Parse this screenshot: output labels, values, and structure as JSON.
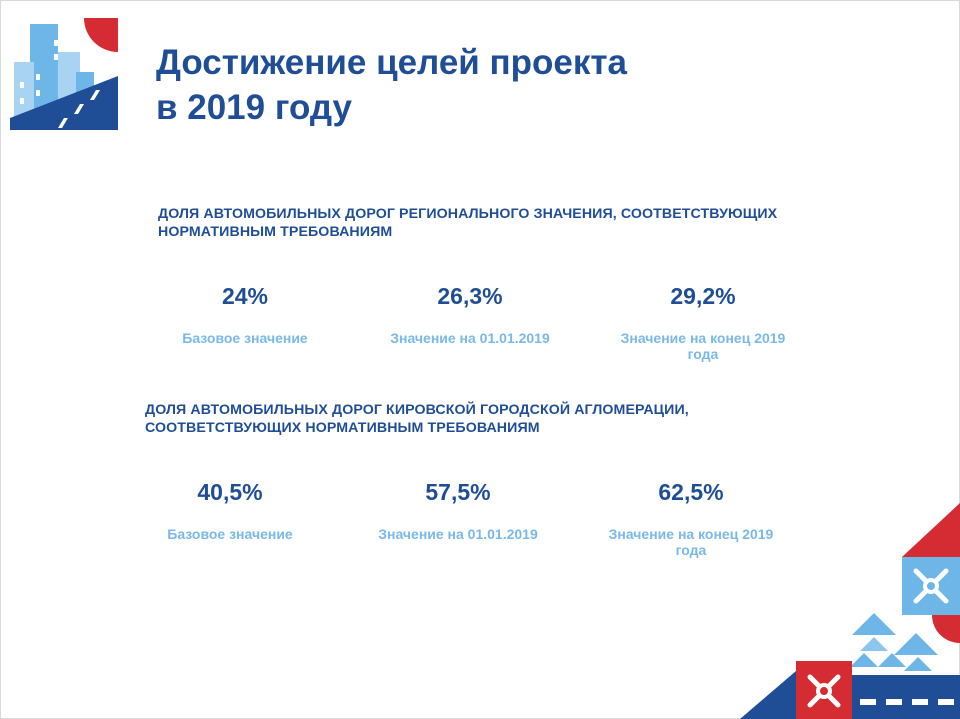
{
  "title": {
    "line1": "Достижение целей проекта",
    "line2": "в 2019 году"
  },
  "sections": [
    {
      "heading_line1": "ДОЛЯ АВТОМОБИЛЬНЫХ ДОРОГ РЕГИОНАЛЬНОГО ЗНАЧЕНИЯ, СООТВЕТСТВУЮЩИХ",
      "heading_line2": "НОРМАТИВНЫМ ТРЕБОВАНИЯМ",
      "metrics": [
        {
          "value": "24%",
          "label": "Базовое значение"
        },
        {
          "value": "26,3%",
          "label": "Значение на 01.01.2019"
        },
        {
          "value": "29,2%",
          "label": "Значение на конец 2019 года"
        }
      ]
    },
    {
      "heading_line1": "ДОЛЯ АВТОМОБИЛЬНЫХ ДОРОГ КИРОВСКОЙ ГОРОДСКОЙ АГЛОМЕРАЦИИ,",
      "heading_line2": "СООТВЕТСТВУЮЩИХ НОРМАТИВНЫМ ТРЕБОВАНИЯМ",
      "metrics": [
        {
          "value": "40,5%",
          "label": "Базовое значение"
        },
        {
          "value": "57,5%",
          "label": "Значение на 01.01.2019"
        },
        {
          "value": "62,5%",
          "label": "Значение на конец 2019 года"
        }
      ]
    }
  ],
  "colors": {
    "navy": "#1f4e96",
    "light_blue": "#79b9e8",
    "red": "#d52b32",
    "sky": "#6fb6e8"
  }
}
